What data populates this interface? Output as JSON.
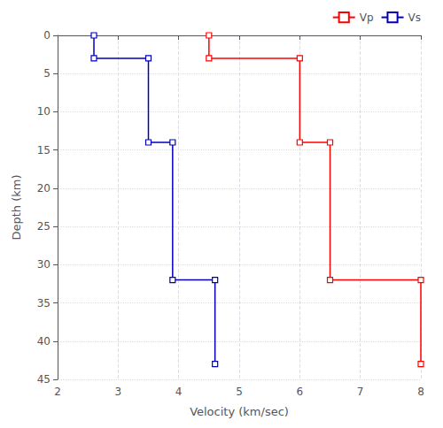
{
  "chart_data": {
    "type": "line",
    "xlabel": "Velocity (km/sec)",
    "ylabel": "Depth (km)",
    "series": [
      {
        "name": "Vp",
        "color": "#ff0000",
        "marker": "square",
        "line_style": "solid",
        "x": [
          4.5,
          4.5,
          6.0,
          6.0,
          6.5,
          6.5,
          8.0,
          8.0
        ],
        "values": [
          0,
          3,
          3,
          14,
          14,
          32,
          32,
          43
        ]
      },
      {
        "name": "Vs",
        "color": "#0000bb",
        "marker": "square",
        "line_style": "solid",
        "x": [
          2.6,
          2.6,
          3.5,
          3.5,
          3.9,
          3.9,
          4.6,
          4.6
        ],
        "values": [
          0,
          3,
          3,
          14,
          14,
          32,
          32,
          43
        ]
      }
    ],
    "xlim": [
      2,
      8
    ],
    "ylim": [
      45,
      0
    ],
    "xticks": [
      2,
      3,
      4,
      5,
      6,
      7,
      8
    ],
    "yticks": [
      0,
      5,
      10,
      15,
      20,
      25,
      30,
      35,
      40,
      45
    ],
    "grid": true,
    "legend": "upper right"
  }
}
